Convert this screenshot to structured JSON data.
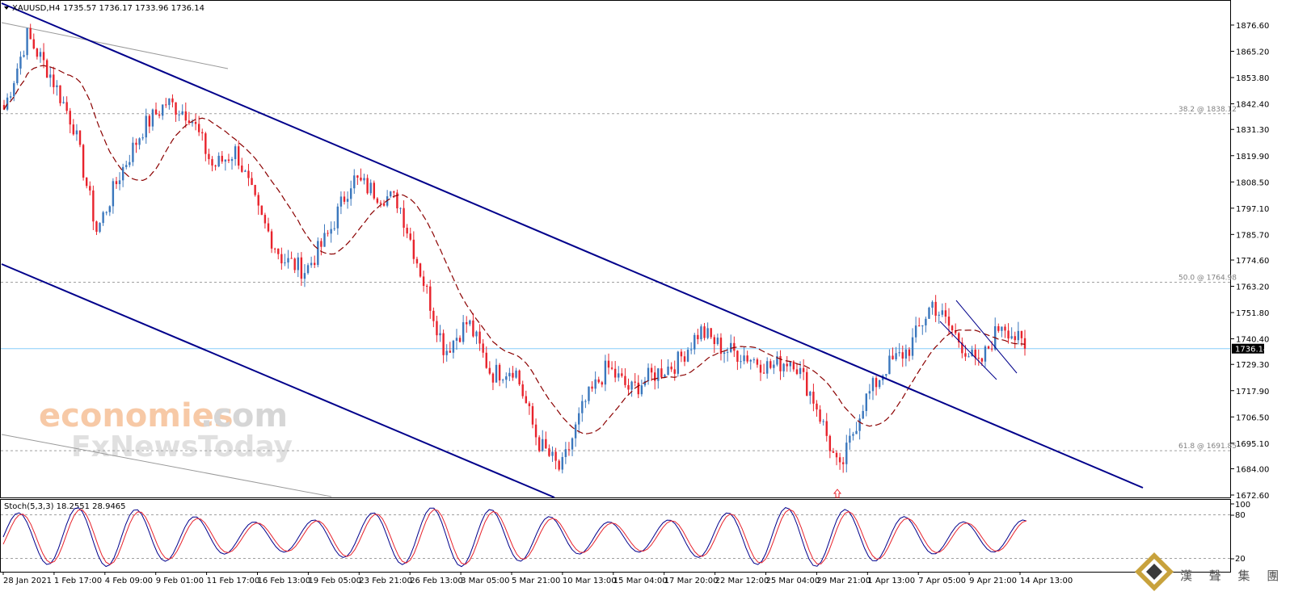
{
  "header": {
    "icon": "triangle-down-icon",
    "symbol": "XAUUSD,H4",
    "ohlc": "1735.57 1736.17 1733.96 1736.14"
  },
  "watermark": {
    "brand_part1": "economies",
    "brand_part2": ".com",
    "brand_line2": "FxNewsToday",
    "corner_logo_text": "漢 聲 集 團"
  },
  "colors": {
    "bull": "#3a77bd",
    "bear": "#e8232c",
    "channel": "#00008b",
    "ma": "#8b0000",
    "stoch_main": "#00008b",
    "stoch_signal": "#e8232c",
    "current_price_line": "#87cefa",
    "fib": "#a0a0a0"
  },
  "price_axis": {
    "ticks": [
      "1876.60",
      "1865.20",
      "1853.80",
      "1842.40",
      "1831.30",
      "1819.90",
      "1808.50",
      "1797.10",
      "1785.70",
      "1774.60",
      "1763.20",
      "1751.80",
      "1740.40",
      "1729.30",
      "1717.90",
      "1706.50",
      "1695.10",
      "1684.00",
      "1672.60"
    ],
    "current_price": "1736.14"
  },
  "fib_levels": [
    {
      "label": "38.2 @ 1838.12",
      "value": 1838.12
    },
    {
      "label": "50.0 @ 1764.98",
      "value": 1764.98
    },
    {
      "label": "61.8 @ 1691.85",
      "value": 1691.85
    }
  ],
  "time_axis": {
    "labels": [
      "28 Jan 2021",
      "1 Feb 17:00",
      "4 Feb 09:00",
      "9 Feb 01:00",
      "11 Feb 17:00",
      "16 Feb 13:00",
      "19 Feb 05:00",
      "23 Feb 21:00",
      "26 Feb 13:00",
      "3 Mar 05:00",
      "5 Mar 21:00",
      "10 Mar 13:00",
      "15 Mar 04:00",
      "17 Mar 20:00",
      "22 Mar 12:00",
      "25 Mar 04:00",
      "29 Mar 21:00",
      "1 Apr 13:00",
      "7 Apr 05:00",
      "9 Apr 21:00",
      "14 Apr 13:00"
    ]
  },
  "stoch": {
    "title": "Stoch(5,3,3) 18.2551 28.9465",
    "axis": [
      "100",
      "80",
      "20"
    ]
  },
  "chart_data": {
    "type": "candlestick",
    "symbol": "XAUUSD",
    "timeframe": "H4",
    "ylim": [
      1670.0,
      1882.0
    ],
    "anchors": [
      {
        "time": "28 Jan 2021",
        "close": 1840
      },
      {
        "time": "29 Jan",
        "close": 1872
      },
      {
        "time": "1 Feb 17:00",
        "close": 1855
      },
      {
        "time": "3 Feb",
        "close": 1833
      },
      {
        "time": "4 Feb 09:00",
        "close": 1787
      },
      {
        "time": "5 Feb",
        "close": 1812
      },
      {
        "time": "8 Feb",
        "close": 1832
      },
      {
        "time": "9 Feb 01:00",
        "close": 1843
      },
      {
        "time": "10 Feb",
        "close": 1838
      },
      {
        "time": "11 Feb 17:00",
        "close": 1815
      },
      {
        "time": "12 Feb",
        "close": 1822
      },
      {
        "time": "15 Feb",
        "close": 1794
      },
      {
        "time": "16 Feb 13:00",
        "close": 1775
      },
      {
        "time": "18 Feb",
        "close": 1770
      },
      {
        "time": "19 Feb 05:00",
        "close": 1786
      },
      {
        "time": "22 Feb",
        "close": 1810
      },
      {
        "time": "23 Feb 21:00",
        "close": 1804
      },
      {
        "time": "24 Feb",
        "close": 1800
      },
      {
        "time": "25 Feb",
        "close": 1768
      },
      {
        "time": "26 Feb 13:00",
        "close": 1735
      },
      {
        "time": "1 Mar",
        "close": 1748
      },
      {
        "time": "2 Mar",
        "close": 1725
      },
      {
        "time": "3 Mar 05:00",
        "close": 1728
      },
      {
        "time": "4 Mar",
        "close": 1696
      },
      {
        "time": "5 Mar 21:00",
        "close": 1683
      },
      {
        "time": "8 Mar",
        "close": 1712
      },
      {
        "time": "10 Mar 13:00",
        "close": 1728
      },
      {
        "time": "11 Mar",
        "close": 1718
      },
      {
        "time": "12 Mar",
        "close": 1725
      },
      {
        "time": "15 Mar 04:00",
        "close": 1730
      },
      {
        "time": "17 Mar 20:00",
        "close": 1744
      },
      {
        "time": "18 Mar",
        "close": 1736
      },
      {
        "time": "22 Mar 12:00",
        "close": 1733
      },
      {
        "time": "25 Mar 04:00",
        "close": 1728
      },
      {
        "time": "26 Mar",
        "close": 1732
      },
      {
        "time": "29 Mar",
        "close": 1712
      },
      {
        "time": "29 Mar 21:00",
        "close": 1682
      },
      {
        "time": "31 Mar",
        "close": 1712
      },
      {
        "time": "1 Apr 13:00",
        "close": 1728
      },
      {
        "time": "5 Apr",
        "close": 1736
      },
      {
        "time": "7 Apr 05:00",
        "close": 1756
      },
      {
        "time": "8 Apr",
        "close": 1742
      },
      {
        "time": "9 Apr 21:00",
        "close": 1728
      },
      {
        "time": "12 Apr",
        "close": 1748
      },
      {
        "time": "14 Apr 13:00",
        "close": 1736.14
      }
    ],
    "channel_upper": [
      {
        "time": "28 Jan 2021",
        "price": 1882
      },
      {
        "time": "1 Apr 13:00",
        "price": 1726
      },
      {
        "time": "after 14 Apr",
        "price": 1675
      }
    ],
    "channel_lower": [
      {
        "time": "28 Jan 2021",
        "price": 1772
      },
      {
        "time": "5 Mar 21:00",
        "price": 1672
      }
    ],
    "moving_average": "dashed",
    "signal_marker": {
      "time": "29 Mar 21:00",
      "type": "up-arrow"
    }
  }
}
